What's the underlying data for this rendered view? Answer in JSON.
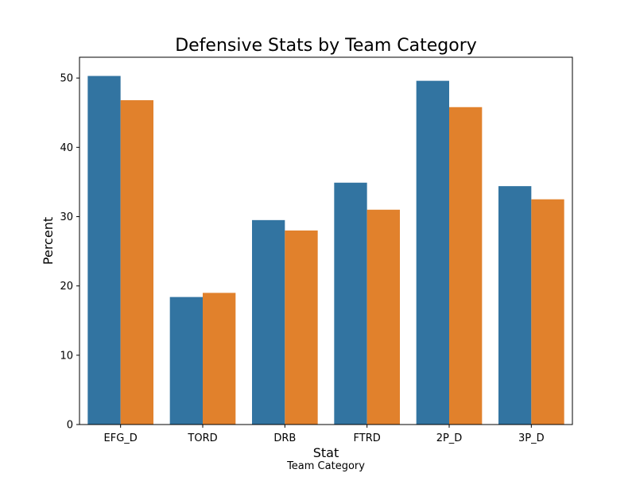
{
  "chart_data": {
    "type": "bar",
    "title": "Defensive Stats by Team Category",
    "xlabel": "Stat",
    "ylabel": "Percent",
    "legend_title": "Team Category",
    "categories": [
      "EFG_D",
      "TORD",
      "DRB",
      "FTRD",
      "2P_D",
      "3P_D"
    ],
    "series": [
      {
        "color": "#3274a1",
        "values": [
          50.3,
          18.4,
          29.5,
          34.9,
          49.6,
          34.4
        ]
      },
      {
        "color": "#e1812c",
        "values": [
          46.8,
          19.0,
          28.0,
          31.0,
          45.8,
          32.5
        ]
      }
    ],
    "ylim": [
      0,
      53
    ],
    "yticks": [
      0,
      10,
      20,
      30,
      40,
      50
    ],
    "grid": false
  }
}
